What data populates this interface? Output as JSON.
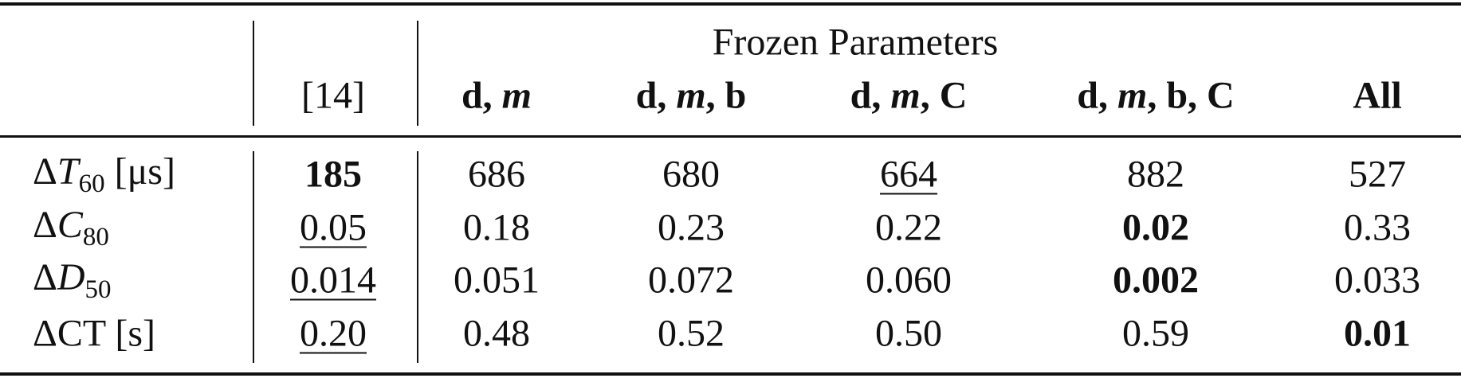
{
  "header": {
    "group": "Frozen Parameters",
    "columns": [
      [
        "[14]"
      ],
      [
        "d",
        ",",
        "m"
      ],
      [
        "d",
        ",",
        "m",
        ",",
        "b"
      ],
      [
        "d",
        ",",
        "m",
        ",",
        "C"
      ],
      [
        "d",
        ",",
        "m",
        ",",
        "b",
        ",",
        "C"
      ],
      [
        "All"
      ]
    ]
  },
  "rows": [
    {
      "label": {
        "symbol": "Δ",
        "var": "T",
        "sub": "60",
        "unit": "[μs]"
      },
      "cells": [
        "185",
        "686",
        "680",
        "664",
        "882",
        "527"
      ]
    },
    {
      "label": {
        "symbol": "Δ",
        "var": "C",
        "sub": "80"
      },
      "cells": [
        "0.05",
        "0.18",
        "0.23",
        "0.22",
        "0.02",
        "0.33"
      ]
    },
    {
      "label": {
        "symbol": "Δ",
        "var": "D",
        "sub": "50"
      },
      "cells": [
        "0.014",
        "0.051",
        "0.072",
        "0.060",
        "0.002",
        "0.033"
      ]
    },
    {
      "label": {
        "symbol": "Δ",
        "var": "CT",
        "unit": "[s]"
      },
      "cells": [
        "0.20",
        "0.48",
        "0.52",
        "0.50",
        "0.59",
        "0.01"
      ]
    }
  ]
}
